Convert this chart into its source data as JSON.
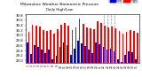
{
  "title": "Milwaukee Weather Barometric Pressure",
  "subtitle": "Daily High/Low",
  "bar_color_high": "#FF0000",
  "bar_color_low": "#0000CC",
  "background_color": "#FFFFFF",
  "title_bg": "#FFFFFF",
  "ylim": [
    28.9,
    30.85
  ],
  "yticks": [
    29.0,
    29.2,
    29.4,
    29.6,
    29.8,
    30.0,
    30.2,
    30.4,
    30.6,
    30.8
  ],
  "ylabel_fontsize": 2.8,
  "title_fontsize": 3.2,
  "days": [
    1,
    2,
    3,
    4,
    5,
    6,
    7,
    8,
    9,
    10,
    11,
    12,
    13,
    14,
    15,
    16,
    17,
    18,
    19,
    20,
    21,
    22,
    23,
    24,
    25,
    26,
    27,
    28,
    29,
    30,
    31
  ],
  "highs": [
    30.15,
    30.42,
    30.38,
    30.35,
    30.22,
    30.18,
    30.2,
    30.08,
    30.25,
    30.42,
    30.48,
    30.38,
    30.22,
    30.3,
    30.65,
    30.45,
    30.3,
    30.28,
    30.25,
    30.55,
    30.48,
    30.38,
    30.32,
    30.35,
    30.28,
    30.18,
    30.08,
    30.15,
    30.22,
    30.18,
    30.1
  ],
  "lows": [
    29.72,
    29.25,
    29.62,
    29.55,
    29.42,
    29.3,
    29.42,
    29.05,
    29.18,
    29.55,
    29.72,
    29.62,
    29.22,
    29.48,
    29.8,
    29.68,
    29.58,
    29.42,
    29.28,
    29.72,
    29.65,
    29.55,
    29.42,
    29.48,
    29.38,
    29.05,
    28.95,
    29.22,
    29.35,
    29.32,
    29.05
  ],
  "dashed_day_indices": [
    21,
    22,
    23,
    24
  ],
  "legend_blue_label": "Low",
  "legend_red_label": "High",
  "bar_width": 0.42
}
